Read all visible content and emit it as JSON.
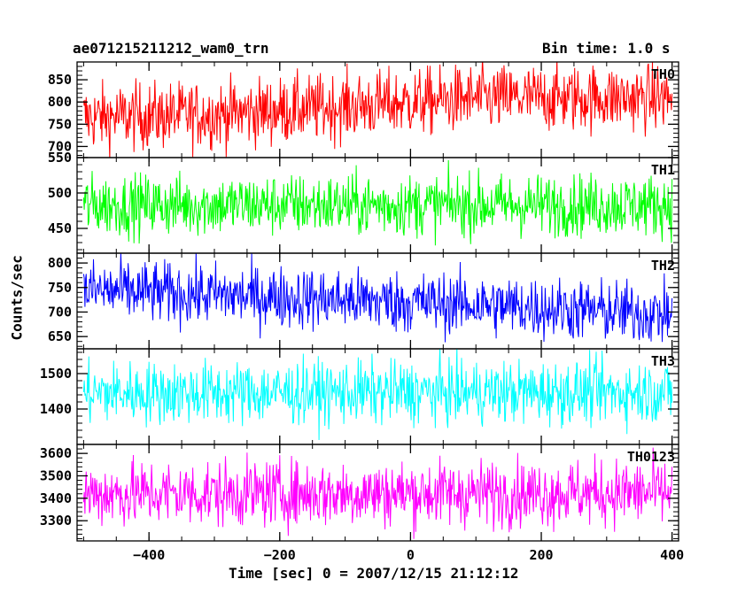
{
  "chart": {
    "title_left": "ae071215211212_wam0_trn",
    "title_right": "Bin time: 1.0 s",
    "xlabel": "Time [sec] 0 = 2007/12/15 21:12:12",
    "ylabel": "Counts/sec"
  },
  "chart_data": {
    "type": "line",
    "shared_x": {
      "range": [
        -510,
        410
      ],
      "ticks": [
        -400,
        -200,
        0,
        200,
        400
      ],
      "tick_labels": [
        "−400",
        "−200",
        "0",
        "200",
        "400"
      ],
      "data_start": -500,
      "data_end": 400,
      "bin_time": 1.0
    },
    "panels": [
      {
        "name": "TH0",
        "color": "#ff0000",
        "ylim": [
          675,
          890
        ],
        "yticks": [
          700,
          750,
          800,
          850
        ],
        "trend": [
          [
            -500,
            765
          ],
          [
            -300,
            772
          ],
          [
            -100,
            790
          ],
          [
            100,
            808
          ],
          [
            400,
            810
          ]
        ],
        "noise": 38
      },
      {
        "name": "TH1",
        "color": "#00ff00",
        "ylim": [
          415,
          550
        ],
        "yticks": [
          450,
          500,
          550
        ],
        "trend": [
          [
            -500,
            483
          ],
          [
            400,
            483
          ]
        ],
        "noise": 22
      },
      {
        "name": "TH2",
        "color": "#0000ff",
        "ylim": [
          625,
          820
        ],
        "yticks": [
          650,
          700,
          750,
          800
        ],
        "trend": [
          [
            -500,
            745
          ],
          [
            -200,
            730
          ],
          [
            100,
            715
          ],
          [
            400,
            695
          ]
        ],
        "noise": 32
      },
      {
        "name": "TH3",
        "color": "#00ffff",
        "ylim": [
          1300,
          1570
        ],
        "yticks": [
          1400,
          1500
        ],
        "trend": [
          [
            -500,
            1445
          ],
          [
            400,
            1448
          ]
        ],
        "noise": 45
      },
      {
        "name": "TH0123",
        "color": "#ff00ff",
        "ylim": [
          3210,
          3640
        ],
        "yticks": [
          3300,
          3400,
          3500,
          3600
        ],
        "trend": [
          [
            -500,
            3420
          ],
          [
            400,
            3425
          ]
        ],
        "noise": 75
      }
    ]
  }
}
